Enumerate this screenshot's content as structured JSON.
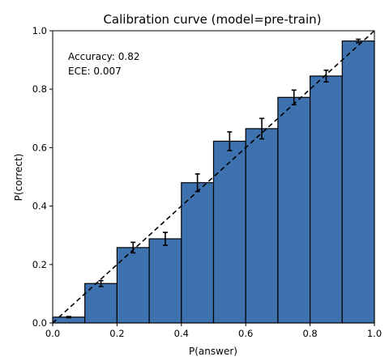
{
  "chart_data": {
    "type": "bar",
    "title": "Calibration curve (model=pre-train)",
    "xlabel": "P(answer)",
    "ylabel": "P(correct)",
    "xlim": [
      0.0,
      1.0
    ],
    "ylim": [
      0.0,
      1.0
    ],
    "xticks": [
      "0.0",
      "0.2",
      "0.4",
      "0.6",
      "0.8",
      "1.0"
    ],
    "yticks": [
      "0.0",
      "0.2",
      "0.4",
      "0.6",
      "0.8",
      "1.0"
    ],
    "bins": [
      {
        "x_start": 0.0,
        "x_end": 0.1,
        "value": 0.02,
        "error": 0.002
      },
      {
        "x_start": 0.1,
        "x_end": 0.2,
        "value": 0.135,
        "error": 0.01
      },
      {
        "x_start": 0.2,
        "x_end": 0.3,
        "value": 0.258,
        "error": 0.018
      },
      {
        "x_start": 0.3,
        "x_end": 0.4,
        "value": 0.288,
        "error": 0.022
      },
      {
        "x_start": 0.4,
        "x_end": 0.5,
        "value": 0.48,
        "error": 0.03
      },
      {
        "x_start": 0.5,
        "x_end": 0.6,
        "value": 0.622,
        "error": 0.032
      },
      {
        "x_start": 0.6,
        "x_end": 0.7,
        "value": 0.665,
        "error": 0.035
      },
      {
        "x_start": 0.7,
        "x_end": 0.8,
        "value": 0.772,
        "error": 0.025
      },
      {
        "x_start": 0.8,
        "x_end": 0.9,
        "value": 0.845,
        "error": 0.02
      },
      {
        "x_start": 0.9,
        "x_end": 1.0,
        "value": 0.965,
        "error": 0.006
      }
    ],
    "reference_line": {
      "style": "dashed",
      "from": [
        0.0,
        0.0
      ],
      "to": [
        1.0,
        1.0
      ],
      "color": "#000000"
    },
    "bar_color": "#3d72af",
    "bar_edge_color": "#000000",
    "error_bar_color": "#000000",
    "annotations": [
      "Accuracy: 0.82",
      "ECE: 0.007"
    ],
    "annotation_placement": "top-left",
    "grid": false,
    "legend": false
  }
}
